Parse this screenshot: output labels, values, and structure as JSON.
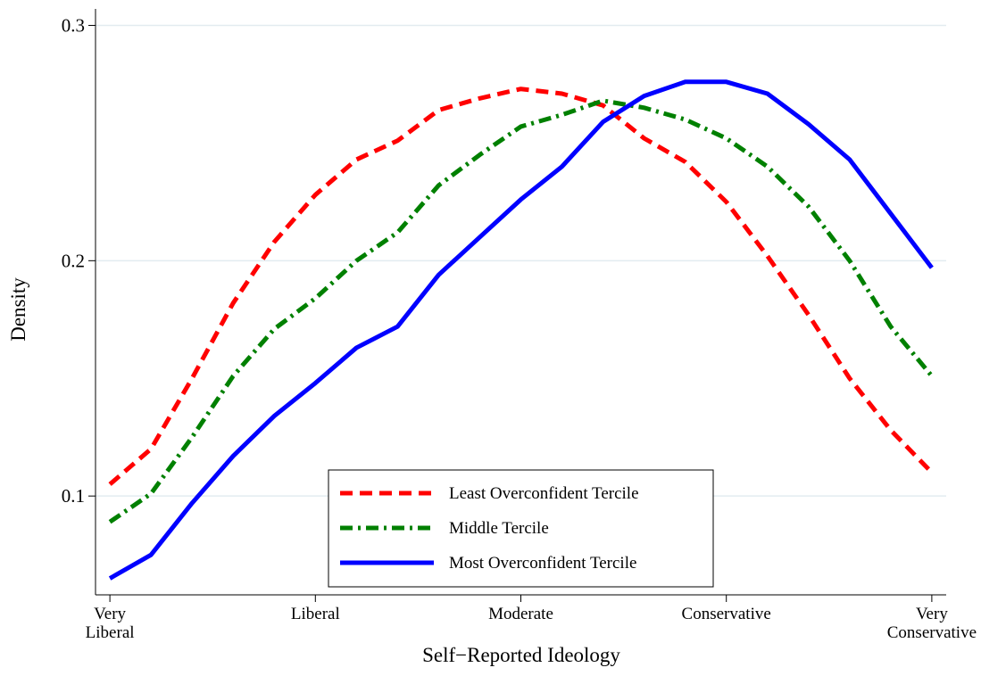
{
  "chart_data": {
    "type": "line",
    "x_label": "Self−Reported Ideology",
    "y_label": "Density",
    "x": [
      1.0,
      1.2,
      1.4,
      1.6,
      1.8,
      2.0,
      2.2,
      2.4,
      2.6,
      2.8,
      3.0,
      3.2,
      3.4,
      3.6,
      3.8,
      4.0,
      4.2,
      4.4,
      4.6,
      4.8,
      5.0
    ],
    "series": [
      {
        "name": "Least Overconfident Tercile",
        "color": "#ff0000",
        "dash": "dashed",
        "values": [
          0.105,
          0.12,
          0.15,
          0.182,
          0.208,
          0.228,
          0.243,
          0.251,
          0.264,
          0.269,
          0.273,
          0.271,
          0.266,
          0.252,
          0.242,
          0.225,
          0.202,
          0.177,
          0.15,
          0.128,
          0.11
        ]
      },
      {
        "name": "Middle Tercile",
        "color": "#008000",
        "dash": "dashdot",
        "values": [
          0.089,
          0.101,
          0.125,
          0.151,
          0.171,
          0.184,
          0.2,
          0.212,
          0.232,
          0.245,
          0.257,
          0.262,
          0.268,
          0.265,
          0.26,
          0.252,
          0.24,
          0.223,
          0.2,
          0.172,
          0.151
        ]
      },
      {
        "name": "Most Overconfident Tercile",
        "color": "#0000ff",
        "dash": "solid",
        "values": [
          0.065,
          0.075,
          0.097,
          0.117,
          0.134,
          0.148,
          0.163,
          0.172,
          0.194,
          0.21,
          0.226,
          0.24,
          0.259,
          0.27,
          0.276,
          0.276,
          0.271,
          0.258,
          0.243,
          0.22,
          0.197
        ]
      }
    ],
    "xlim": [
      0.93,
      5.07
    ],
    "ylim": [
      0.058,
      0.307
    ],
    "xticks": [
      {
        "value": 1,
        "label": "Very Liberal"
      },
      {
        "value": 2,
        "label": "Liberal"
      },
      {
        "value": 3,
        "label": "Moderate"
      },
      {
        "value": 4,
        "label": "Conservative"
      },
      {
        "value": 5,
        "label": "Very Conservative"
      }
    ],
    "yticks": [
      0.1,
      0.2,
      0.3
    ],
    "grid": true,
    "legend": "bottom"
  }
}
